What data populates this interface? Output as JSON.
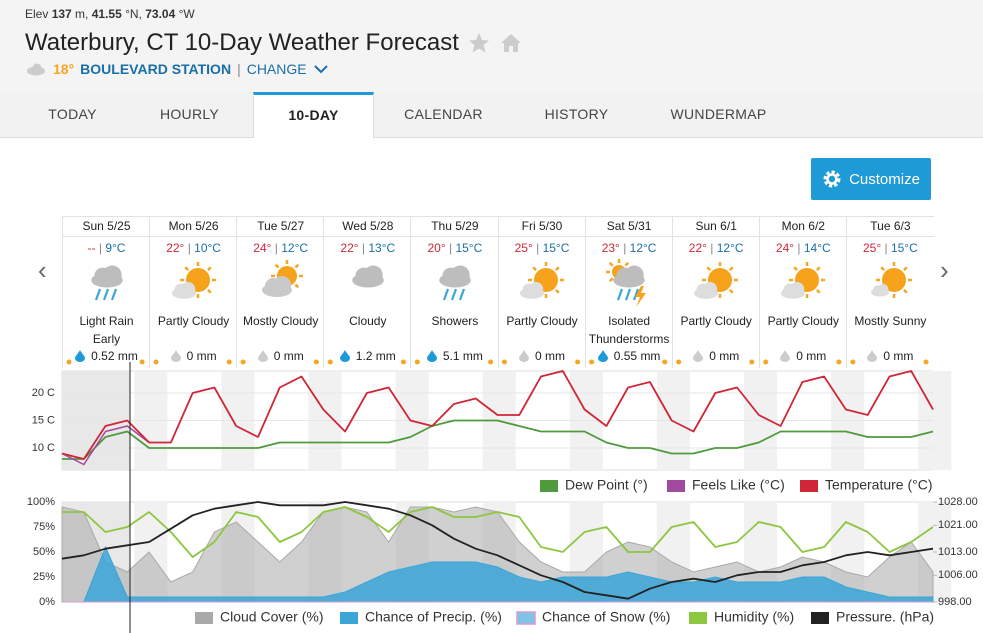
{
  "header": {
    "meta": [
      "Elev ",
      "137",
      " m, ",
      "41.55",
      " °N, ",
      "73.04",
      " °W"
    ],
    "title": "Waterbury, CT 10-Day Weather Forecast",
    "current_temp": "18°",
    "station": "BOULEVARD STATION",
    "separator": "|",
    "change": "CHANGE"
  },
  "tabs": {
    "items": [
      "TODAY",
      "HOURLY",
      "10-DAY",
      "CALENDAR",
      "HISTORY",
      "WUNDERMAP"
    ],
    "active": 2
  },
  "customize": "Customize",
  "days": [
    {
      "day": "Sun 5/25",
      "high": "--",
      "low": "9°C",
      "condition": "Light Rain Early",
      "precip": "0.52 mm"
    },
    {
      "day": "Mon 5/26",
      "high": "22°",
      "low": "10°C",
      "condition": "Partly Cloudy",
      "precip": "0 mm"
    },
    {
      "day": "Tue 5/27",
      "high": "24°",
      "low": "12°C",
      "condition": "Mostly Cloudy",
      "precip": "0 mm"
    },
    {
      "day": "Wed 5/28",
      "high": "22°",
      "low": "13°C",
      "condition": "Cloudy",
      "precip": "1.2 mm"
    },
    {
      "day": "Thu 5/29",
      "high": "20°",
      "low": "15°C",
      "condition": "Showers",
      "precip": "5.1 mm"
    },
    {
      "day": "Fri 5/30",
      "high": "25°",
      "low": "15°C",
      "condition": "Partly Cloudy",
      "precip": "0 mm"
    },
    {
      "day": "Sat 5/31",
      "high": "23°",
      "low": "12°C",
      "condition": "Isolated Thunderstorms",
      "precip": "0.55 mm"
    },
    {
      "day": "Sun 6/1",
      "high": "22°",
      "low": "12°C",
      "condition": "Partly Cloudy",
      "precip": "0 mm"
    },
    {
      "day": "Mon 6/2",
      "high": "24°",
      "low": "14°C",
      "condition": "Partly Cloudy",
      "precip": "0 mm"
    },
    {
      "day": "Tue 6/3",
      "high": "25°",
      "low": "15°C",
      "condition": "Mostly Sunny",
      "precip": "0 mm"
    }
  ],
  "chart_data": [
    {
      "type": "line",
      "categories": [
        null,
        null,
        null,
        null,
        null,
        null,
        null,
        null,
        null,
        null,
        null,
        null,
        null,
        null,
        null,
        null,
        null,
        null,
        null,
        null,
        null,
        null,
        null,
        null,
        null,
        null,
        null,
        null,
        null,
        null,
        null,
        null,
        null,
        null,
        null,
        null,
        null,
        null,
        null,
        null,
        null
      ],
      "ylim": [
        6,
        24
      ],
      "yticks": [
        {
          "value": 10,
          "label": "10 C"
        },
        {
          "value": 15,
          "label": "15 C"
        },
        {
          "value": 20,
          "label": "20 C"
        }
      ],
      "grid": true,
      "series": [
        {
          "name": "Dew Point (°)",
          "color": "#4e9a3c",
          "values": [
            8,
            8,
            12,
            13,
            10,
            10,
            10,
            10,
            10,
            10,
            11,
            11,
            11,
            11,
            11,
            11,
            12,
            14,
            15,
            15,
            15,
            14,
            13,
            13,
            13,
            11,
            10,
            10,
            9,
            9,
            10,
            10,
            11,
            13,
            13,
            13,
            13,
            12,
            12,
            12,
            13
          ]
        },
        {
          "name": "Feels Like (°C)",
          "color": "#a24a9e",
          "values": [
            9,
            7,
            13,
            14,
            11,
            null,
            null,
            null,
            null,
            null,
            null,
            null,
            null,
            null,
            null,
            null,
            null,
            null,
            null,
            null,
            null,
            null,
            null,
            null,
            null,
            null,
            null,
            null,
            null,
            null,
            null,
            null,
            null,
            null,
            null,
            null,
            null,
            null,
            null,
            null,
            null
          ]
        },
        {
          "name": "Temperature (°C)",
          "color": "#cf2638",
          "values": [
            9,
            8,
            14,
            15,
            11,
            11,
            20,
            21,
            14,
            12,
            21,
            23,
            17,
            13,
            20,
            21,
            15,
            14,
            18,
            19,
            16,
            16,
            23,
            24,
            17,
            14,
            21,
            22,
            15,
            13,
            20,
            21,
            16,
            14,
            22,
            23,
            17,
            16,
            23,
            24,
            17
          ]
        }
      ]
    },
    {
      "type": "line",
      "categories": [
        null,
        null,
        null,
        null,
        null,
        null,
        null,
        null,
        null,
        null,
        null,
        null,
        null,
        null,
        null,
        null,
        null,
        null,
        null,
        null,
        null,
        null,
        null,
        null,
        null,
        null,
        null,
        null,
        null,
        null,
        null,
        null,
        null,
        null,
        null,
        null,
        null,
        null,
        null,
        null,
        null
      ],
      "ylim": [
        0,
        100
      ],
      "yticks": [
        {
          "value": 0,
          "label": "0%"
        },
        {
          "value": 25,
          "label": "25%"
        },
        {
          "value": 50,
          "label": "50%"
        },
        {
          "value": 75,
          "label": "75%"
        },
        {
          "value": 100,
          "label": "100%"
        }
      ],
      "y2lim": [
        998,
        1028
      ],
      "y2ticks": [
        {
          "value": 998,
          "label": "998.00"
        },
        {
          "value": 1006,
          "label": "1006.00"
        },
        {
          "value": 1013,
          "label": "1013.00"
        },
        {
          "value": 1021,
          "label": "1021.00"
        },
        {
          "value": 1028,
          "label": "1028.00"
        }
      ],
      "series": [
        {
          "name": "Cloud Cover (%)",
          "color": "#a9a9a9",
          "kind": "area",
          "values": [
            95,
            90,
            40,
            30,
            50,
            20,
            30,
            70,
            80,
            60,
            40,
            60,
            90,
            95,
            90,
            60,
            95,
            95,
            90,
            95,
            90,
            60,
            40,
            30,
            30,
            50,
            60,
            55,
            40,
            30,
            35,
            40,
            30,
            35,
            45,
            40,
            30,
            25,
            45,
            60,
            30
          ]
        },
        {
          "name": "Chance of Precip. (%)",
          "color": "#3aa6d8",
          "kind": "area",
          "values": [
            0,
            0,
            55,
            5,
            5,
            5,
            5,
            5,
            5,
            5,
            5,
            5,
            5,
            10,
            20,
            30,
            35,
            40,
            40,
            40,
            35,
            25,
            20,
            25,
            25,
            25,
            30,
            25,
            20,
            20,
            25,
            20,
            20,
            20,
            25,
            25,
            15,
            10,
            5,
            5,
            5
          ]
        },
        {
          "name": "Chance of Snow (%)",
          "color": "#d89ad2",
          "kind": "area",
          "values": [
            0,
            0,
            0,
            0,
            0,
            0,
            0,
            0,
            0,
            0,
            0,
            0,
            0,
            0,
            0,
            0,
            0,
            0,
            0,
            0,
            0,
            0,
            0,
            0,
            0,
            0,
            0,
            0,
            0,
            0,
            0,
            0,
            0,
            0,
            0,
            0,
            0,
            0,
            0,
            0,
            0
          ]
        },
        {
          "name": "Humidity (%)",
          "color": "#8dc63f",
          "kind": "line",
          "values": [
            90,
            90,
            70,
            75,
            90,
            70,
            45,
            60,
            90,
            85,
            60,
            70,
            90,
            95,
            85,
            70,
            90,
            95,
            85,
            85,
            90,
            85,
            55,
            50,
            70,
            75,
            50,
            50,
            75,
            80,
            55,
            60,
            80,
            75,
            50,
            55,
            80,
            70,
            50,
            60,
            75
          ]
        },
        {
          "name": "Pressure. (hPa)",
          "color": "#222222",
          "kind": "line",
          "axis": "y2",
          "values": [
            1011,
            1012,
            1014,
            1015,
            1016,
            1020,
            1024,
            1026,
            1027,
            1028,
            1027,
            1027,
            1027,
            1028,
            1027,
            1026,
            1024,
            1021,
            1017,
            1014,
            1012,
            1009,
            1006,
            1004,
            1001,
            1000,
            999,
            1002,
            1004,
            1005,
            1004,
            1006,
            1007,
            1007,
            1009,
            1010,
            1012,
            1013,
            1012,
            1013,
            1014
          ]
        }
      ]
    }
  ]
}
